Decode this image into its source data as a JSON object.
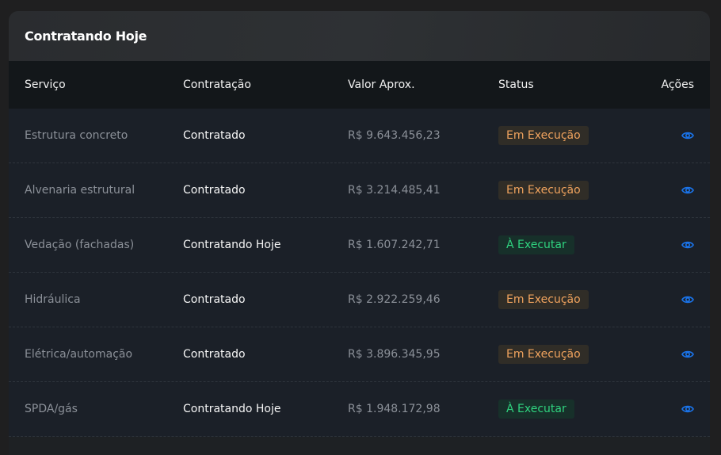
{
  "card": {
    "title": "Contratando Hoje"
  },
  "table": {
    "headers": [
      "Serviço",
      "Contratação",
      "Valor Aprox.",
      "Status",
      "Ações"
    ],
    "rows": [
      {
        "servico": "Estrutura concreto",
        "contratacao": "Contratado",
        "valor": "R$ 9.643.456,23",
        "status": "Em Execução",
        "status_type": "orange",
        "action_icon": "eye-icon"
      },
      {
        "servico": "Alvenaria estrutural",
        "contratacao": "Contratado",
        "valor": "R$ 3.214.485,41",
        "status": "Em Execução",
        "status_type": "orange",
        "action_icon": "eye-icon"
      },
      {
        "servico": "Vedação (fachadas)",
        "contratacao": "Contratando Hoje",
        "valor": "R$ 1.607.242,71",
        "status": "À Executar",
        "status_type": "green",
        "action_icon": "eye-icon"
      },
      {
        "servico": "Hidráulica",
        "contratacao": "Contratado",
        "valor": "R$ 2.922.259,46",
        "status": "Em Execução",
        "status_type": "orange",
        "action_icon": "eye-icon"
      },
      {
        "servico": "Elétrica/automação",
        "contratacao": "Contratado",
        "valor": "R$ 3.896.345,95",
        "status": "Em Execução",
        "status_type": "orange",
        "action_icon": "eye-icon"
      },
      {
        "servico": "SPDA/gás",
        "contratacao": "Contratando Hoje",
        "valor": "R$ 1.948.172,98",
        "status": "À Executar",
        "status_type": "green",
        "action_icon": "eye-icon"
      }
    ]
  },
  "colors": {
    "orange_status": "#f0a35e",
    "green_status": "#2fd37f",
    "accent_icon": "#1a73e8"
  }
}
